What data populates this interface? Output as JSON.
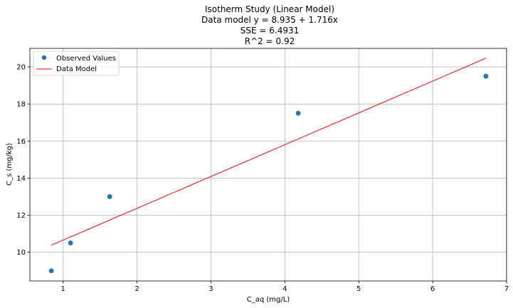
{
  "chart_data": {
    "type": "scatter",
    "title_lines": [
      "Isotherm Study (Linear Model)",
      "Data model y = 8.935 + 1.716x",
      "SSE = 6.4931",
      "R^2 = 0.92"
    ],
    "xlabel": "C_aq (mg/L)",
    "ylabel": "C_s  (mg/kg)",
    "xlim": [
      0.55,
      7.0
    ],
    "ylim": [
      8.45,
      21.0
    ],
    "xticks": [
      1,
      2,
      3,
      4,
      5,
      6,
      7
    ],
    "yticks": [
      10,
      12,
      14,
      16,
      18,
      20
    ],
    "grid": true,
    "legend": {
      "placement": "top-left",
      "entries": [
        "Observed Values",
        "Data Model"
      ]
    },
    "series": [
      {
        "name": "Observed Values",
        "kind": "scatter",
        "color": "#1f77b4",
        "x": [
          0.84,
          1.1,
          1.63,
          4.18,
          6.72
        ],
        "y": [
          9.0,
          10.5,
          13.0,
          17.5,
          19.5
        ]
      },
      {
        "name": "Data Model",
        "kind": "line",
        "color": "#ff0000",
        "x": [
          0.84,
          6.72
        ],
        "y": [
          10.38,
          20.47
        ]
      }
    ]
  }
}
